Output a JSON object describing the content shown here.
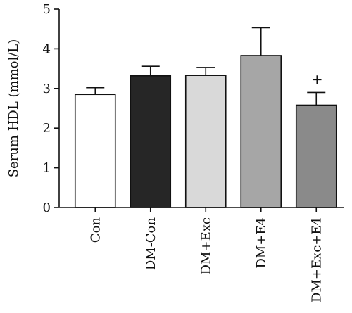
{
  "chart_data": {
    "type": "bar",
    "categories": [
      "Con",
      "DM-Con",
      "DM+Exc",
      "DM+E4",
      "DM+Exc+E4"
    ],
    "values": [
      2.85,
      3.32,
      3.33,
      3.83,
      2.58
    ],
    "errors": [
      0.17,
      0.24,
      0.2,
      0.7,
      0.32
    ],
    "bar_colors": [
      "#ffffff",
      "#262626",
      "#d9d9d9",
      "#a6a6a6",
      "#8a8a8a"
    ],
    "annotations": [
      "",
      "",
      "",
      "",
      "+"
    ],
    "title": "",
    "xlabel": "",
    "ylabel": "Serum HDL (mmol/L)",
    "ylim": [
      0,
      5
    ],
    "yticks": [
      0,
      1,
      2,
      3,
      4,
      5
    ],
    "grid": false,
    "legend": "none"
  }
}
